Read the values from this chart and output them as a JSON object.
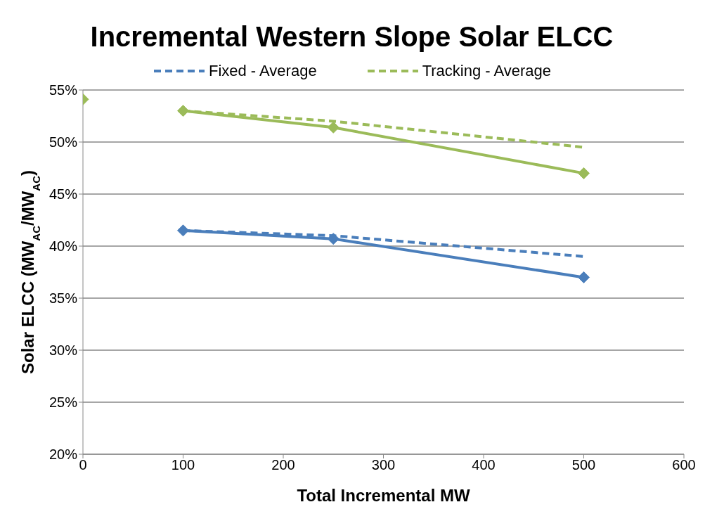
{
  "chart_data": {
    "type": "line",
    "title": "Incremental Western Slope Solar ELCC",
    "xlabel": "Total Incremental MW",
    "ylabel": "Solar ELCC  (MW$_{AC}$/MW$_{AC}$)",
    "series": [
      {
        "name": "Fixed - Average",
        "color": "#4a7ebb",
        "line_style": "dashed",
        "marker": "none",
        "x": [
          100,
          250,
          500
        ],
        "values": [
          41.5,
          41.0,
          39.0
        ]
      },
      {
        "name": "Tracking - Average",
        "color": "#9bbb59",
        "line_style": "dashed",
        "marker": "none",
        "x": [
          100,
          250,
          500
        ],
        "values": [
          53.0,
          52.0,
          49.5
        ]
      },
      {
        "color": "#4a7ebb",
        "line_style": "solid",
        "marker": "diamond",
        "x": [
          100,
          250,
          500
        ],
        "values": [
          41.5,
          40.7,
          37.0
        ]
      },
      {
        "color": "#9bbb59",
        "line_style": "solid",
        "marker": "diamond",
        "x": [
          100,
          250,
          500
        ],
        "values": [
          53.0,
          51.4,
          47.0
        ]
      },
      {
        "type": "scatter",
        "color": "#9bbb59",
        "marker": "diamond",
        "x": [
          0
        ],
        "values": [
          54.1
        ]
      }
    ],
    "xlim": [
      0,
      600
    ],
    "xticks": [
      0,
      100,
      200,
      300,
      400,
      500,
      600
    ],
    "ylim": [
      20,
      55
    ],
    "yticks": [
      {
        "value": 20,
        "label": "20%"
      },
      {
        "value": 25,
        "label": "25%"
      },
      {
        "value": 30,
        "label": "30%"
      },
      {
        "value": 35,
        "label": "35%"
      },
      {
        "value": 40,
        "label": "40%"
      },
      {
        "value": 45,
        "label": "45%"
      },
      {
        "value": 50,
        "label": "50%"
      },
      {
        "value": 55,
        "label": "55%"
      }
    ],
    "grid": "y",
    "legend": "top"
  }
}
